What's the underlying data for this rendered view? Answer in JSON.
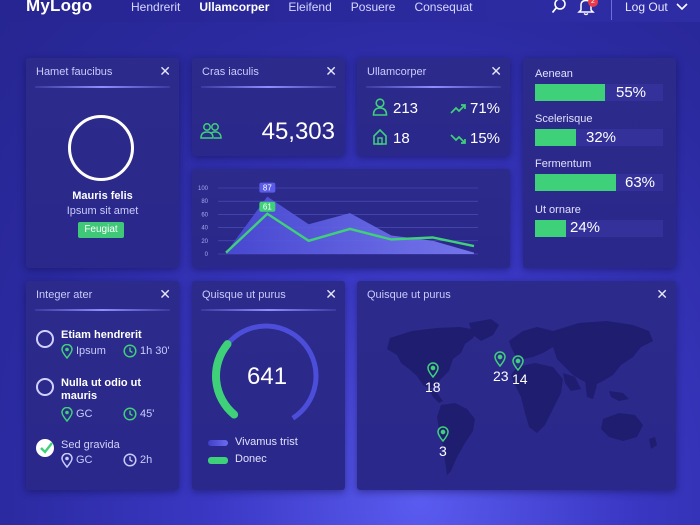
{
  "header": {
    "logo": "MyLogo",
    "nav": [
      "Hendrerit",
      "Ullamcorper",
      "Eleifend",
      "Posuere",
      "Consequat"
    ],
    "active_index": 1,
    "notification_count": "2",
    "logout": "Log Out"
  },
  "profile": {
    "title": "Hamet faucibus",
    "name": "Mauris felis",
    "subtitle": "Ipsum sit amet",
    "button": "Feugiat"
  },
  "users": {
    "title": "Cras iaculis",
    "value": "45,303"
  },
  "stats": {
    "title": "Ullamcorper",
    "a_value": "213",
    "b_value": "18",
    "up_value": "71%",
    "down_value": "15%"
  },
  "area_chart": {
    "badge_top": "87",
    "badge_bottom": "61",
    "chart_data": {
      "type": "area",
      "yticks": [
        "100",
        "80",
        "60",
        "40",
        "20",
        "0"
      ],
      "ylim": [
        0,
        100
      ],
      "series": [
        {
          "values": [
            2,
            87,
            45,
            62,
            28,
            20,
            2
          ]
        },
        {
          "values": [
            2,
            61,
            20,
            38,
            22,
            25,
            12
          ]
        }
      ],
      "grid": true
    }
  },
  "progress": {
    "title": "Aenean",
    "items": [
      {
        "label": "Aenean",
        "value": 55,
        "text": "55%"
      },
      {
        "label": "Scelerisque",
        "value": 32,
        "text": "32%"
      },
      {
        "label": "Fermentum",
        "value": 63,
        "text": "63%"
      },
      {
        "label": "Ut ornare",
        "value": 24,
        "text": "24%"
      }
    ]
  },
  "tasks": {
    "title": "Integer ater",
    "items": [
      {
        "title": "Etiam hendrerit",
        "place": "Ipsum",
        "time": "1h 30'",
        "done": false
      },
      {
        "title": "Nulla ut odio ut mauris",
        "place": "GC",
        "time": "45'",
        "done": false
      },
      {
        "title": "Sed gravida",
        "place": "GC",
        "time": "2h",
        "done": true
      }
    ]
  },
  "gauge": {
    "title": "Quisque ut purus",
    "value": "641",
    "fraction": 0.42,
    "legend": [
      "Vivamus trist",
      "Donec"
    ],
    "colors": [
      "#5a5be8",
      "#3fd07a"
    ]
  },
  "map": {
    "title": "Quisque ut purus",
    "markers": [
      "18",
      "23",
      "14",
      "3"
    ]
  },
  "colors": {
    "accent_green": "#3fd07a",
    "panel": "#2b2990"
  }
}
